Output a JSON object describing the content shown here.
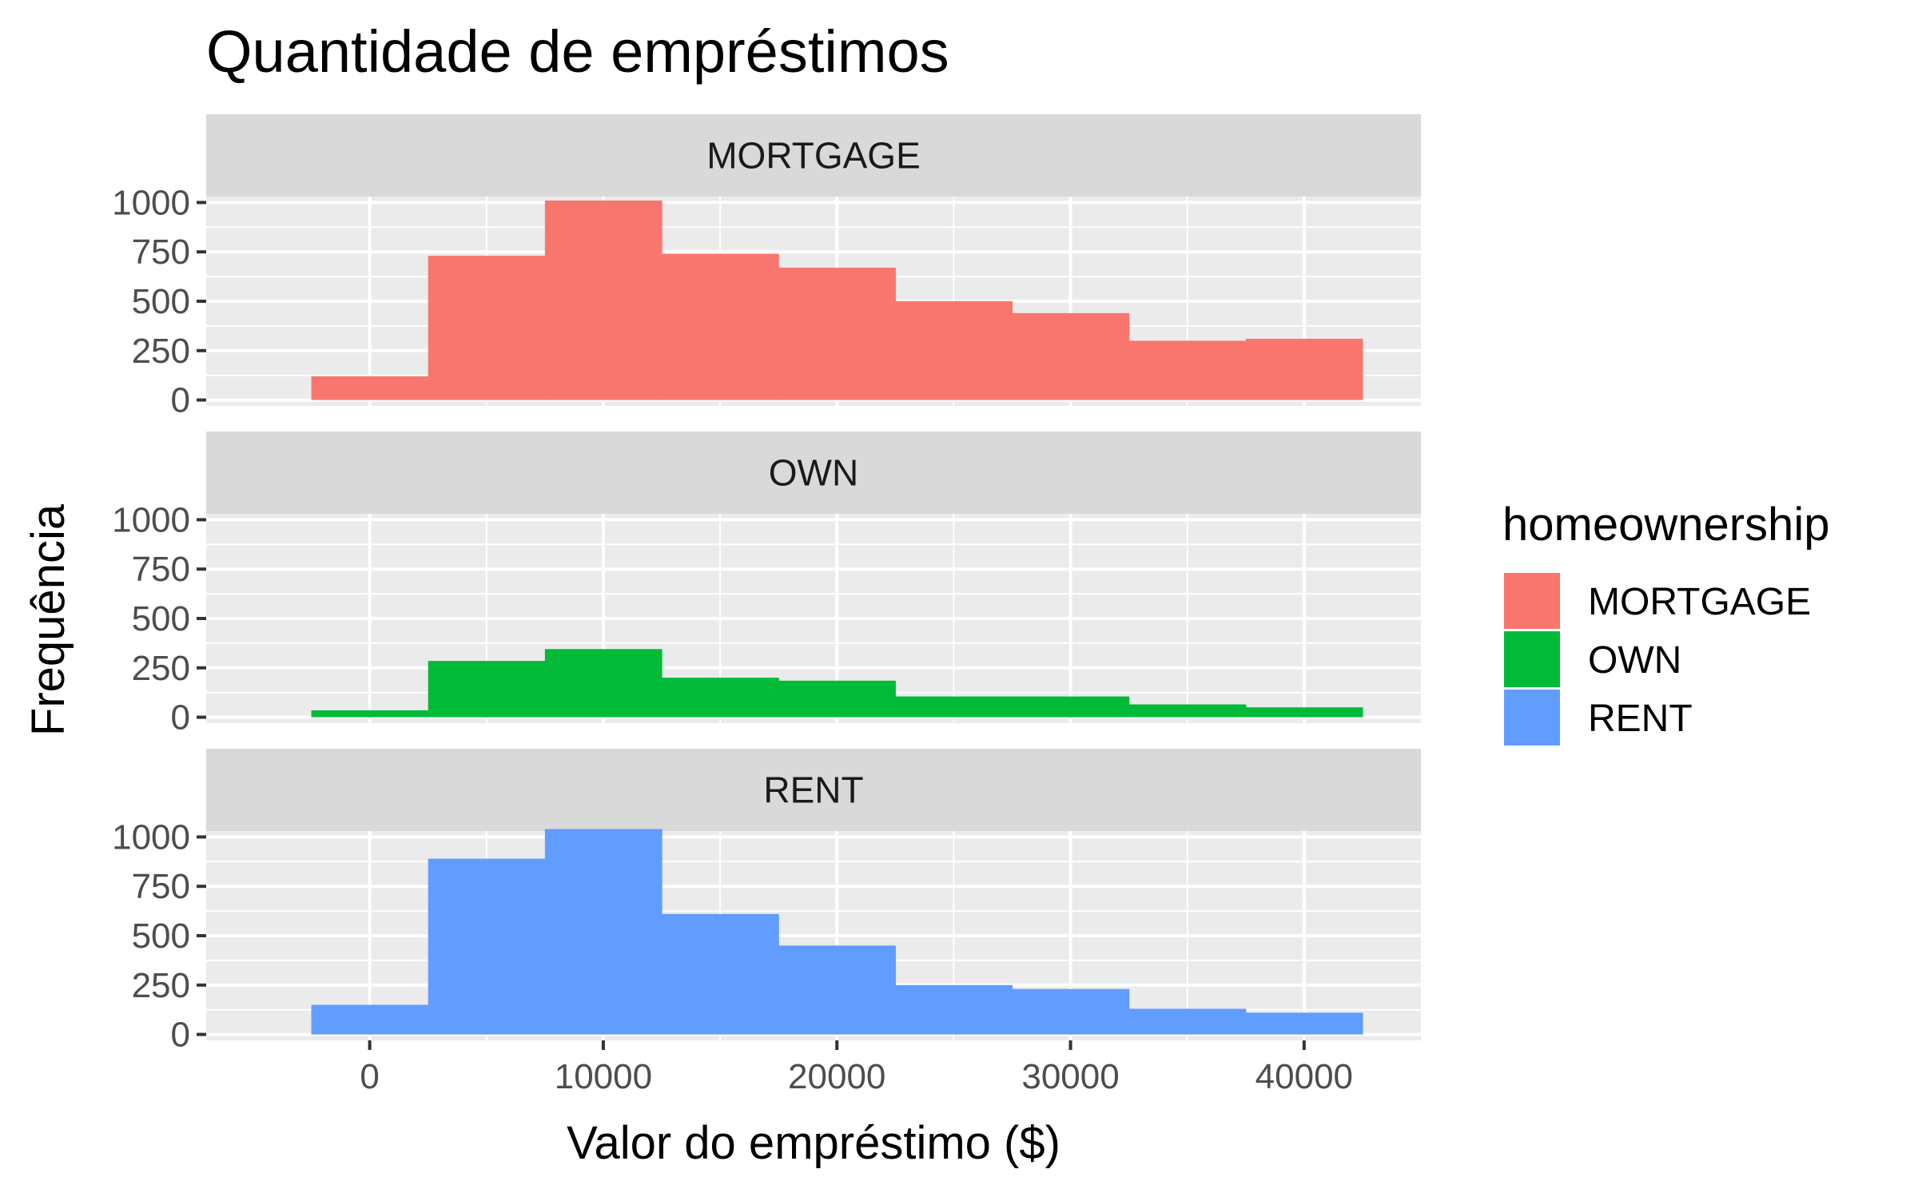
{
  "chart_data": {
    "type": "bar",
    "title": "Quantidade de empréstimos",
    "xlabel": "Valor do empréstimo ($)",
    "ylabel": "Frequência",
    "bin_width": 5000,
    "bin_starts": [
      -2500,
      2500,
      7500,
      12500,
      17500,
      22500,
      27500,
      32500,
      37500
    ],
    "xlim": [
      -7000,
      45000
    ],
    "ylim": [
      -30,
      1030
    ],
    "x_ticks": [
      0,
      10000,
      20000,
      30000,
      40000
    ],
    "x_tick_labels": [
      "0",
      "10000",
      "20000",
      "30000",
      "40000"
    ],
    "y_ticks": [
      0,
      250,
      500,
      750,
      1000
    ],
    "y_tick_labels": [
      "0",
      "250",
      "500",
      "750",
      "1000"
    ],
    "grid": true,
    "facets": [
      "MORTGAGE",
      "OWN",
      "RENT"
    ],
    "series": [
      {
        "name": "MORTGAGE",
        "color": "#F8766D",
        "values": [
          120,
          730,
          1010,
          740,
          670,
          500,
          440,
          300,
          310
        ]
      },
      {
        "name": "OWN",
        "color": "#00BA38",
        "values": [
          35,
          285,
          345,
          200,
          185,
          105,
          105,
          65,
          50
        ]
      },
      {
        "name": "RENT",
        "color": "#619CFF",
        "values": [
          150,
          890,
          1040,
          610,
          450,
          250,
          230,
          130,
          110
        ]
      }
    ],
    "legend": {
      "title": "homeownership",
      "position": "right"
    }
  }
}
